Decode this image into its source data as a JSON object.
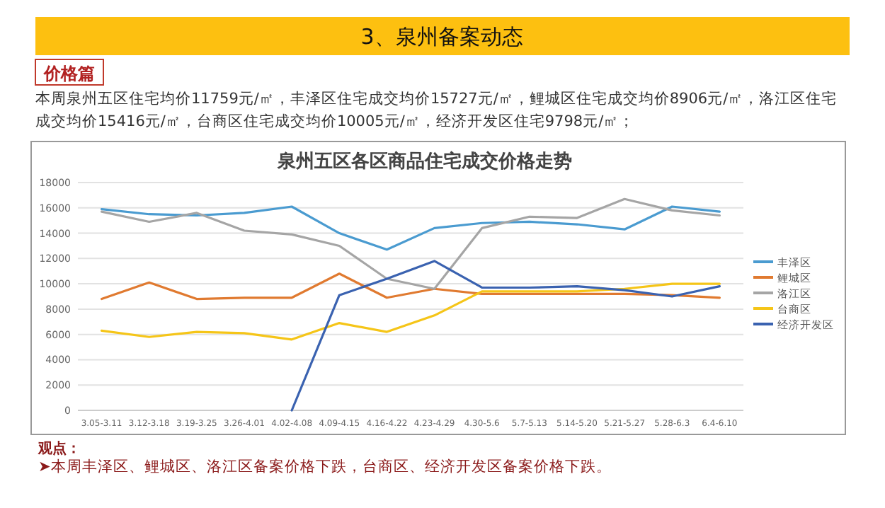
{
  "chart_data": {
    "type": "line",
    "title": "泉州五区各区商品住宅成交价格走势",
    "annotations": [
      "3、泉州备案动态",
      "价格篇",
      "本周泉州五区住宅均价11759元/㎡，丰泽区住宅成交均价15727元/㎡，鲤城区住宅成交均价8906元/㎡，洛江区住宅成交均价15416元/㎡，台商区住宅成交均价10005元/㎡，经济开发区住宅9798元/㎡；",
      "观点：",
      "➤本周丰泽区、鲤城区、洛江区备案价格下跌，台商区、经济开发区备案价格下跌。"
    ],
    "categories": [
      "3.05-3.11",
      "3.12-3.18",
      "3.19-3.25",
      "3.26-4.01",
      "4.02-4.08",
      "4.09-4.15",
      "4.16-4.22",
      "4.23-4.29",
      "4.30-5.6",
      "5.7-5.13",
      "5.14-5.20",
      "5.21-5.27",
      "5.28-6.3",
      "6.4-6.10"
    ],
    "series": [
      {
        "name": "丰泽区",
        "color": "#4a9bd0",
        "values": [
          15900,
          15500,
          15400,
          15600,
          16100,
          14000,
          12700,
          14400,
          14800,
          14900,
          14700,
          14300,
          16100,
          15700
        ]
      },
      {
        "name": "鲤城区",
        "color": "#e07a30",
        "values": [
          8800,
          10100,
          8800,
          8900,
          8900,
          10800,
          8900,
          9600,
          9200,
          9200,
          9200,
          9200,
          9100,
          8900
        ]
      },
      {
        "name": "洛江区",
        "color": "#a5a5a5",
        "values": [
          15700,
          14900,
          15600,
          14200,
          13900,
          13000,
          10400,
          9600,
          14400,
          15300,
          15200,
          16700,
          15800,
          15400
        ]
      },
      {
        "name": "台商区",
        "color": "#f5c518",
        "values": [
          6300,
          5800,
          6200,
          6100,
          5600,
          6900,
          6200,
          7500,
          9400,
          9400,
          9400,
          9600,
          10000,
          10000
        ]
      },
      {
        "name": "经济开发区",
        "color": "#3a62b0",
        "values": [
          null,
          null,
          null,
          null,
          0,
          9100,
          10400,
          11800,
          9700,
          9700,
          9800,
          9500,
          9000,
          9800
        ]
      }
    ],
    "ylim": [
      0,
      18000
    ],
    "yticks": [
      0,
      2000,
      4000,
      6000,
      8000,
      10000,
      12000,
      14000,
      16000,
      18000
    ],
    "grid": "y",
    "legend": "right",
    "marker": "none",
    "line_style": "solid"
  }
}
